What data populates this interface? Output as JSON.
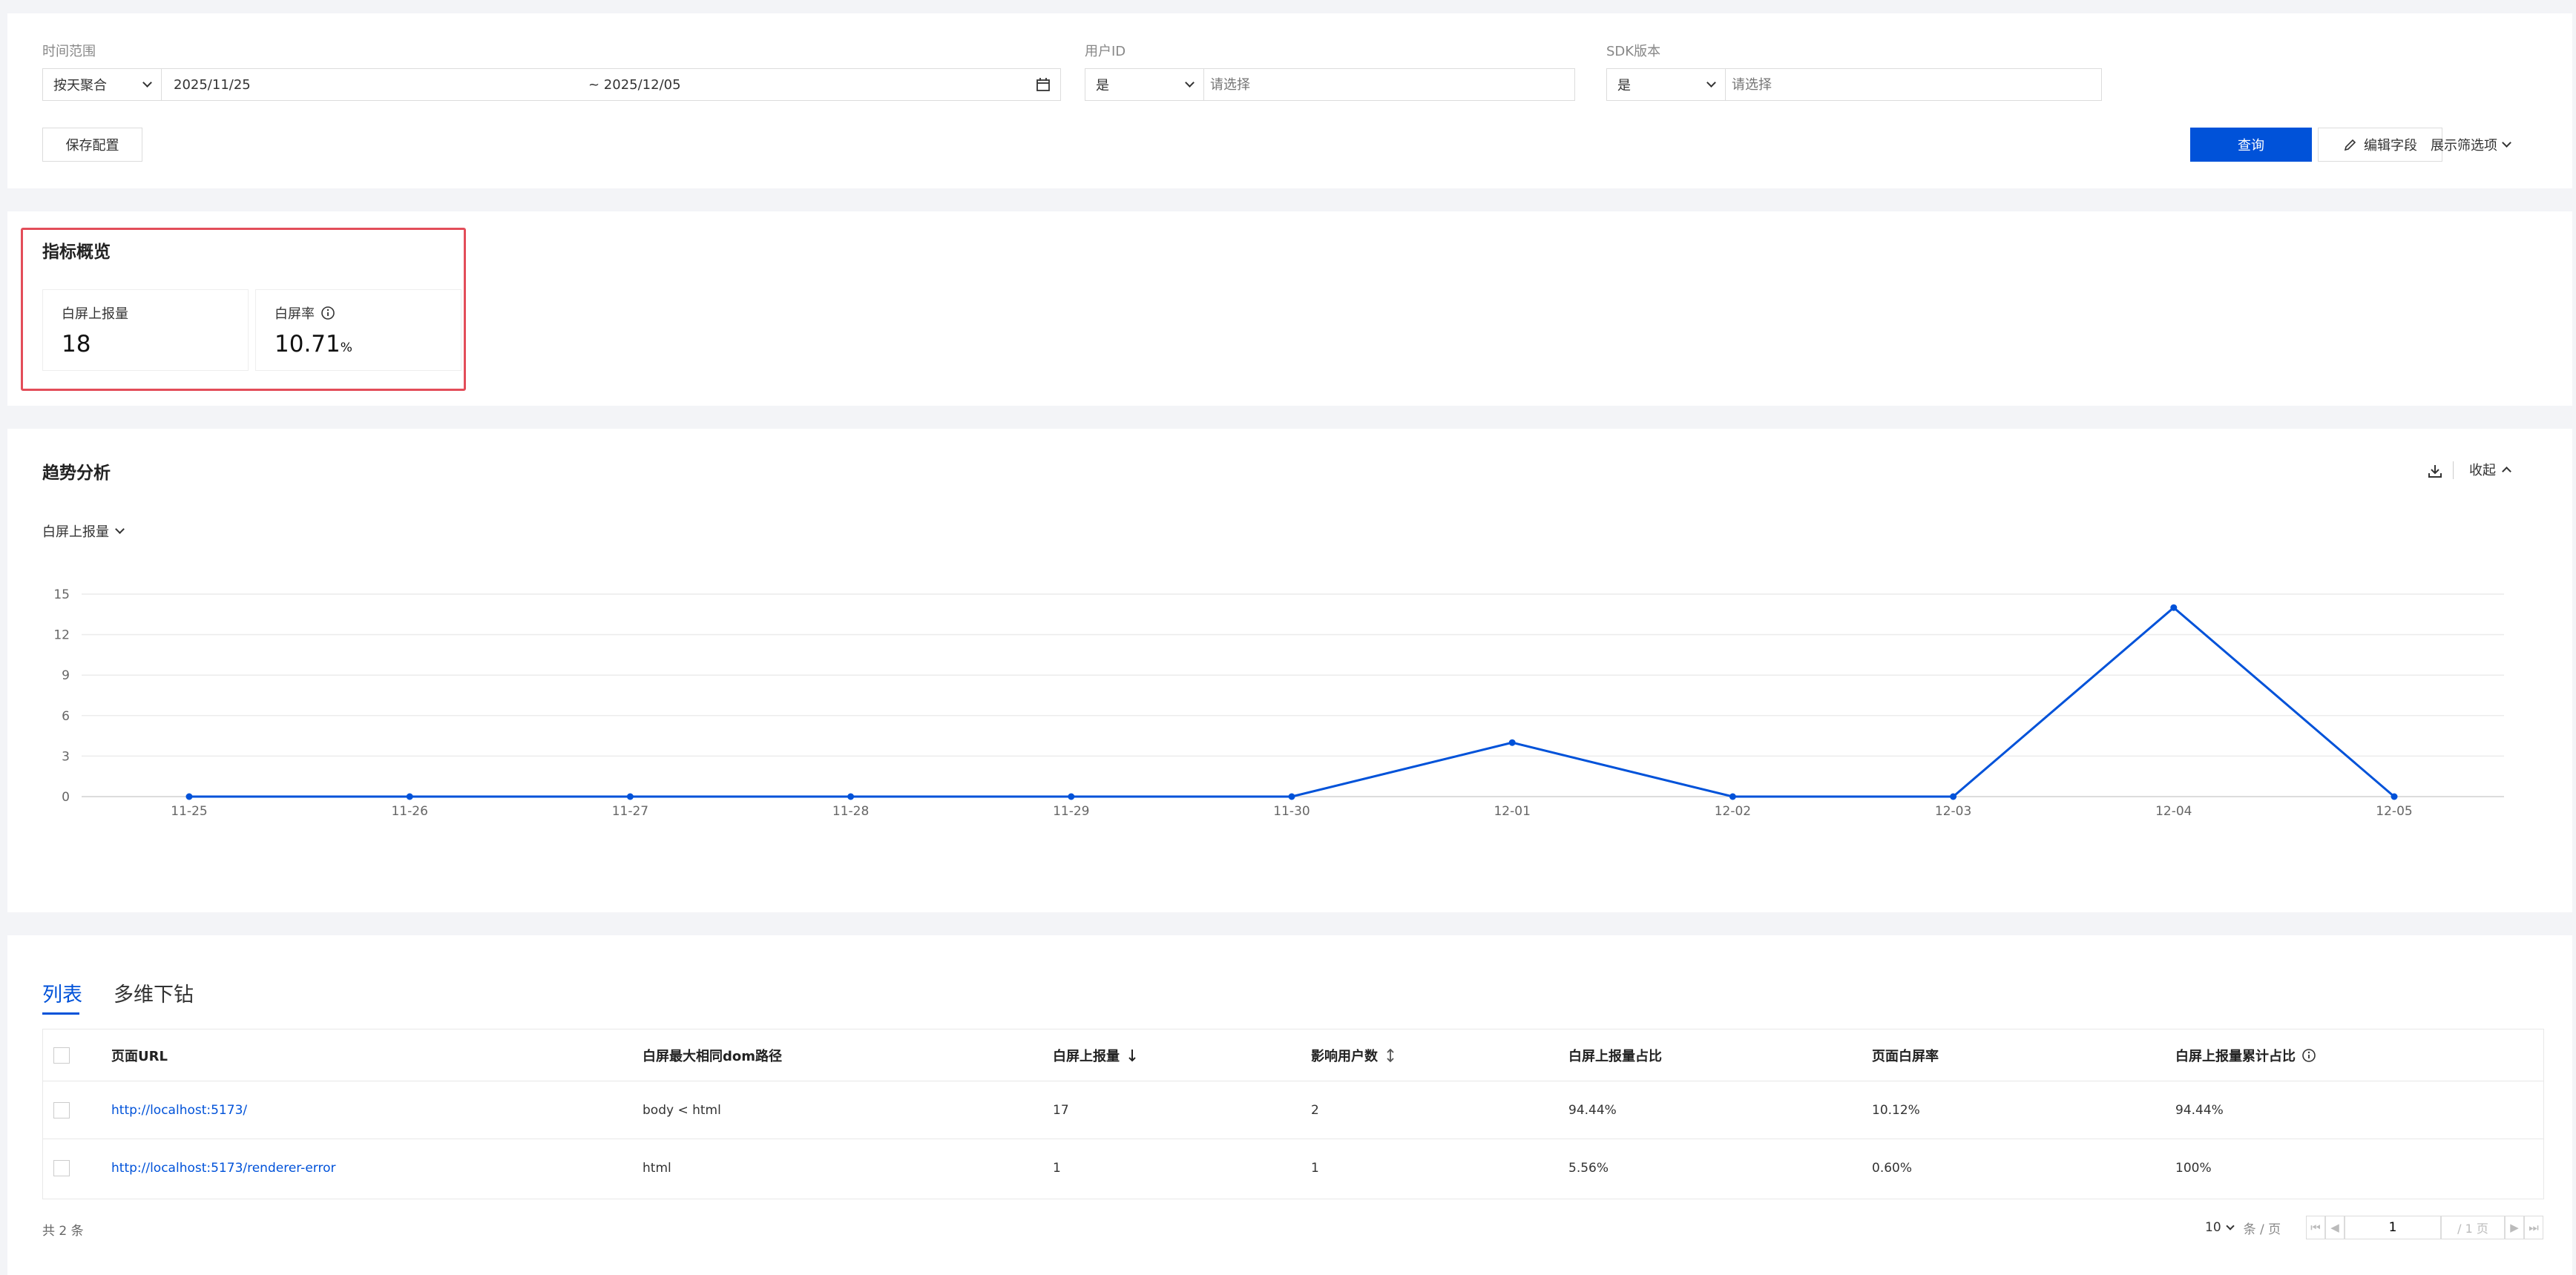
{
  "filters": {
    "time_range": {
      "label": "时间范围",
      "agg": "按天聚合",
      "start": "2025/11/25",
      "end": "~ 2025/12/05"
    },
    "user_id": {
      "label": "用户ID",
      "op": "是",
      "placeholder": "请选择"
    },
    "sdk": {
      "label": "SDK版本",
      "op": "是",
      "placeholder": "请选择"
    },
    "save_config": "保存配置",
    "query": "查询",
    "edit_fields": "编辑字段",
    "show_filters": "展示筛选项"
  },
  "overview": {
    "title": "指标概览",
    "metrics": [
      {
        "label": "白屏上报量",
        "value": "18",
        "unit": ""
      },
      {
        "label": "白屏率",
        "value": "10.71",
        "unit": "%"
      }
    ]
  },
  "trend": {
    "title": "趋势分析",
    "collapse": "收起",
    "metric_select": "白屏上报量"
  },
  "chart_data": {
    "type": "line",
    "categories": [
      "11-25",
      "11-26",
      "11-27",
      "11-28",
      "11-29",
      "11-30",
      "12-01",
      "12-02",
      "12-03",
      "12-04",
      "12-05"
    ],
    "series": [
      {
        "values": [
          0,
          0,
          0,
          0,
          0,
          0,
          4,
          0,
          0,
          14,
          0
        ]
      }
    ],
    "yticks": [
      0,
      3,
      6,
      9,
      12,
      15
    ],
    "ylim": [
      0,
      15
    ],
    "grid": true,
    "color": "#0052d9"
  },
  "list": {
    "tabs": [
      {
        "label": "列表"
      },
      {
        "label": "多维下钻"
      }
    ],
    "columns": [
      "页面URL",
      "白屏最大相同dom路径",
      "白屏上报量",
      "影响用户数",
      "白屏上报量占比",
      "页面白屏率",
      "白屏上报量累计占比"
    ],
    "rows": [
      {
        "url": "http://localhost:5173/",
        "dom": "body < html",
        "count": "17",
        "users": "2",
        "ratio": "94.44%",
        "rate": "10.12%",
        "cum": "94.44%"
      },
      {
        "url": "http://localhost:5173/renderer-error",
        "dom": "html",
        "count": "1",
        "users": "1",
        "ratio": "5.56%",
        "rate": "0.60%",
        "cum": "100%"
      }
    ],
    "total": "共 2 条",
    "page_size": "10",
    "per_page": "条 / 页",
    "page": "1",
    "pages": "/ 1 页"
  },
  "colors": {
    "accent": "#0052d9",
    "highlight_border": "#e34d59"
  }
}
